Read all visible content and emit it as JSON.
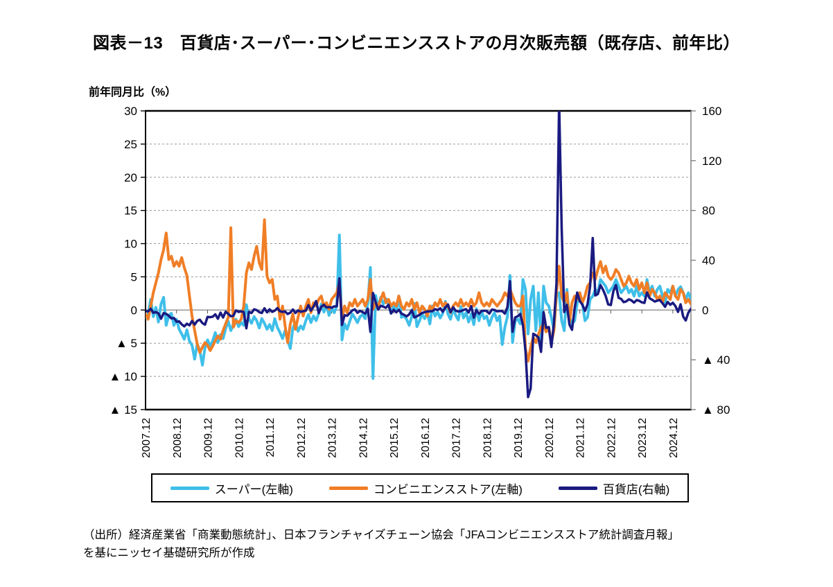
{
  "header": {
    "title": "図表－13　百貨店･スーパー･コンビニエンスストアの月次販売額（既存店、前年比）"
  },
  "chart_data": {
    "type": "line",
    "title": "百貨店･スーパー･コンビニエンスストアの月次販売額（既存店、前年比）",
    "ylabel_left": "前年同月比（%）",
    "xlabel": "",
    "grid": true,
    "legend_position": "bottom",
    "x_start": "2007.12",
    "x_end": "2025.07",
    "x_frequency": "monthly",
    "x_tick_labels": [
      "2007.12",
      "2008.12",
      "2009.12",
      "2010.12",
      "2011.12",
      "2012.12",
      "2013.12",
      "2014.12",
      "2015.12",
      "2016.12",
      "2017.12",
      "2018.12",
      "2019.12",
      "2020.12",
      "2021.12",
      "2022.12",
      "2023.12",
      "2024.12"
    ],
    "left_axis": {
      "min": -15,
      "max": 30,
      "tick_values": [
        30,
        25,
        20,
        15,
        10,
        5,
        0,
        -5,
        -10,
        -15
      ],
      "tick_labels": [
        "30",
        "25",
        "20",
        "15",
        "10",
        "5",
        "0",
        "▲ 5",
        "▲ 10",
        "▲ 15"
      ]
    },
    "right_axis": {
      "min": -80,
      "max": 160,
      "tick_values": [
        160,
        120,
        80,
        40,
        0,
        -40,
        -80
      ],
      "tick_labels": [
        "160",
        "120",
        "80",
        "40",
        "0",
        "▲ 40",
        "▲ 80"
      ]
    },
    "series": [
      {
        "name": "スーパー(左軸)",
        "axis": "left",
        "color": "#3FBFE9",
        "width": 4,
        "values": [
          -1.2,
          -0.6,
          1.6,
          -1.0,
          0.4,
          -1.8,
          0.9,
          1.9,
          -2.3,
          -0.8,
          -0.5,
          -2.3,
          -1.4,
          -2.9,
          -3.6,
          -4.4,
          -3.0,
          -4.7,
          -5.3,
          -7.4,
          -5.1,
          -6.1,
          -8.3,
          -5.7,
          -4.5,
          -5.5,
          -4.6,
          -3.4,
          -4.9,
          -3.7,
          -4.3,
          -2.8,
          -1.7,
          -3.1,
          -2.1,
          -1.4,
          -2.5,
          -1.9,
          -2.3,
          0.8,
          -1.3,
          -2.0,
          -1.0,
          -1.6,
          -2.7,
          -1.3,
          -2.0,
          -2.9,
          -2.2,
          -3.1,
          -1.3,
          -2.6,
          -3.4,
          -4.3,
          -3.1,
          -4.6,
          -5.8,
          -2.7,
          -1.9,
          -3.2,
          -2.4,
          -2.9,
          -1.6,
          -0.7,
          -1.9,
          -0.9,
          -1.6,
          -0.5,
          0.9,
          -0.3,
          0.8,
          -0.8,
          0.3,
          -0.4,
          0.6,
          11.3,
          -4.5,
          -2.1,
          -2.9,
          -1.7,
          -0.6,
          -1.2,
          -1.9,
          -1.0,
          -0.7,
          -1.3,
          1.1,
          6.4,
          -10.3,
          2.2,
          0.4,
          1.9,
          0.9,
          1.7,
          0.9,
          -0.5,
          0.7,
          -0.2,
          2.1,
          -1.1,
          -0.9,
          -1.4,
          -2.3,
          -1.0,
          1.0,
          -2.5,
          -1.6,
          -0.6,
          -1.3,
          -0.4,
          -2.1,
          0.6,
          -0.9,
          -0.3,
          -1.2,
          -0.5,
          1.3,
          -0.6,
          -1.4,
          0.2,
          -0.8,
          -1.5,
          0.5,
          -1.2,
          -0.4,
          -1.8,
          -0.6,
          -2.2,
          0.2,
          -1.6,
          -0.2,
          -1.3,
          -0.9,
          -2.3,
          -1.1,
          -0.4,
          -1.6,
          -0.9,
          -5.2,
          -2.6,
          -1.0,
          5.2,
          -4.9,
          -1.6,
          -1.4,
          -2.1,
          4.6,
          3.1,
          -3.6,
          1.6,
          3.6,
          -3.1,
          2.6,
          -4.6,
          3.6,
          1.1,
          0.6,
          -1.1,
          -3.1,
          2.1,
          2.6,
          -1.6,
          -3.1,
          3.1,
          -1.1,
          -2.1,
          -1.6,
          1.1,
          1.6,
          1.1,
          -1.6,
          -1.1,
          1.6,
          2.1,
          3.1,
          2.6,
          4.6,
          4.1,
          3.6,
          2.6,
          3.1,
          3.6,
          4.6,
          3.6,
          2.6,
          3.1,
          3.6,
          2.6,
          3.1,
          2.1,
          3.6,
          2.1,
          2.6,
          2.1,
          4.6,
          2.6,
          3.6,
          2.1,
          3.1,
          3.6,
          2.1,
          1.1,
          3.1,
          2.6,
          3.6,
          2.1,
          3.1,
          3.5,
          2.6,
          1.6,
          2.6,
          1.6
        ]
      },
      {
        "name": "コンビニエンスストア(左軸)",
        "axis": "left",
        "color": "#F07E26",
        "width": 4,
        "values": [
          -0.6,
          -1.4,
          0.6,
          2.6,
          4.1,
          5.6,
          7.6,
          9.1,
          11.6,
          7.6,
          8.1,
          6.6,
          7.3,
          6.6,
          7.9,
          6.4,
          5.2,
          2.1,
          -0.9,
          -3.1,
          -5.1,
          -6.4,
          -5.6,
          -4.9,
          -5.3,
          -6.1,
          -5.4,
          -4.6,
          -3.9,
          -4.4,
          -3.1,
          -2.1,
          -1.1,
          12.4,
          -2.6,
          -1.6,
          -1.9,
          -1.4,
          0.6,
          5.6,
          7.1,
          6.1,
          8.1,
          9.6,
          7.1,
          6.1,
          13.6,
          5.1,
          4.1,
          4.6,
          1.6,
          2.1,
          -1.4,
          0.6,
          -2.4,
          -4.9,
          -2.1,
          -0.6,
          -2.9,
          -1.1,
          0.6,
          -0.9,
          0.6,
          1.6,
          -0.4,
          1.1,
          0.6,
          1.6,
          2.1,
          0.6,
          1.1,
          0.1,
          1.6,
          2.1,
          2.6,
          4.1,
          -1.4,
          0.6,
          -0.4,
          1.1,
          0.6,
          1.6,
          0.6,
          1.1,
          1.6,
          0.6,
          1.6,
          4.6,
          0.1,
          1.1,
          0.6,
          1.6,
          2.6,
          1.1,
          1.6,
          0.6,
          1.1,
          0.6,
          2.1,
          0.6,
          0.1,
          1.1,
          0.6,
          1.6,
          0.1,
          1.1,
          -0.4,
          0.6,
          0.1,
          -0.9,
          0.6,
          0.1,
          1.1,
          0.6,
          1.6,
          0.6,
          1.1,
          0.6,
          -0.4,
          0.6,
          1.1,
          0.6,
          1.6,
          0.6,
          1.1,
          0.6,
          1.6,
          0.6,
          1.1,
          2.6,
          1.1,
          0.6,
          1.1,
          0.6,
          1.6,
          1.1,
          0.6,
          1.1,
          1.6,
          2.6,
          2.1,
          3.1,
          2.1,
          1.1,
          0.6,
          0.6,
          2.1,
          -5.9,
          -7.7,
          -5.6,
          -4.1,
          -4.9,
          -3.7,
          -2.6,
          -2.1,
          -3.3,
          -2.6,
          -4.9,
          -3.1,
          2.6,
          6.6,
          2.1,
          1.1,
          2.6,
          -1.9,
          1.1,
          2.1,
          1.6,
          2.6,
          1.1,
          2.1,
          3.6,
          4.1,
          5.6,
          4.6,
          6.1,
          7.3,
          5.6,
          6.6,
          5.1,
          4.6,
          5.1,
          6.1,
          5.6,
          4.6,
          3.6,
          4.1,
          5.1,
          4.1,
          3.6,
          4.6,
          3.1,
          4.1,
          2.6,
          4.1,
          2.1,
          3.1,
          2.6,
          1.6,
          2.1,
          1.1,
          2.6,
          2.1,
          1.6,
          3.6,
          2.1,
          1.6,
          3.1,
          2.6,
          1.1,
          1.6,
          0.9
        ]
      },
      {
        "name": "百貨店(右軸)",
        "axis": "right",
        "color": "#1A1A80",
        "width": 3.5,
        "values": [
          -0.8,
          -1.1,
          1.0,
          -2.2,
          -1.6,
          -2.7,
          -7.0,
          -2.5,
          -3.1,
          -4.7,
          -6.8,
          -6.4,
          -9.4,
          -9.1,
          -11.5,
          -13.1,
          -11.0,
          -12.3,
          -8.8,
          -11.7,
          -8.8,
          -7.8,
          -10.5,
          -11.8,
          -5.5,
          -5.7,
          -5.4,
          -3.5,
          -7.0,
          -2.1,
          -6.0,
          -1.4,
          -3.1,
          -5.0,
          -4.6,
          -0.3,
          -1.5,
          -1.1,
          -1.6,
          -14.7,
          -1.5,
          -2.4,
          0.6,
          -0.1,
          -1.7,
          -2.4,
          1.4,
          -1.9,
          0.6,
          -1.5,
          -0.5,
          1.5,
          -1.0,
          -1.5,
          -1.2,
          -3.2,
          -2.1,
          0.4,
          -2.4,
          -0.3,
          -1.3,
          -1.0,
          -0.5,
          3.9,
          -0.5,
          2.6,
          7.2,
          -2.5,
          2.7,
          4.2,
          2.1,
          2.4,
          1.8,
          2.9,
          3.0,
          25.4,
          -12.0,
          -4.2,
          -4.6,
          -2.5,
          -0.3,
          0.5,
          -2.2,
          -0.7,
          -1.7,
          -2.8,
          1.1,
          -17.5,
          13.7,
          6.3,
          0.4,
          3.4,
          2.7,
          1.8,
          4.2,
          -2.7,
          0.2,
          -1.9,
          0.2,
          -2.9,
          -3.8,
          -5.1,
          -3.5,
          -0.1,
          -6.0,
          -5.0,
          -3.9,
          -2.4,
          -1.7,
          -1.2,
          -1.0,
          -0.9,
          0.7,
          0.0,
          1.4,
          -1.4,
          2.0,
          4.4,
          -1.8,
          2.2,
          -0.6,
          -1.2,
          -0.9,
          0.1,
          0.7,
          -2.0,
          3.1,
          -6.1,
          -0.2,
          -3.0,
          -0.8,
          -0.6,
          -0.7,
          -2.9,
          0.3,
          0.1,
          -1.1,
          -0.8,
          -0.9,
          -2.9,
          2.3,
          23.1,
          -17.5,
          -6.0,
          -5.0,
          -3.1,
          -12.2,
          -33.4,
          -70.0,
          -63.0,
          -19.1,
          -20.3,
          -22.0,
          -33.6,
          -1.7,
          -14.3,
          -13.7,
          -29.7,
          -10.7,
          21.8,
          167.0,
          65.2,
          -1.6,
          4.2,
          -11.7,
          -15.9,
          1.4,
          14.0,
          7.2,
          4.3,
          -0.7,
          4.6,
          19.0,
          57.8,
          11.7,
          12.9,
          20.0,
          16.2,
          11.4,
          4.5,
          4.0,
          15.1,
          20.0,
          9.8,
          8.9,
          6.3,
          7.0,
          8.6,
          7.7,
          6.0,
          8.0,
          7.4,
          6.2,
          5.7,
          14.1,
          9.5,
          8.2,
          6.8,
          7.6,
          8.0,
          5.4,
          2.6,
          6.5,
          4.2,
          5.8,
          3.2,
          -1.5,
          4.6,
          -5.2,
          -8.4,
          -2.1,
          1.0
        ]
      }
    ]
  },
  "legend": {
    "items": [
      {
        "label": "スーパー(左軸)",
        "color": "#3FBFE9"
      },
      {
        "label": "コンビニエンスストア(左軸)",
        "color": "#F07E26"
      },
      {
        "label": "百貨店(右軸)",
        "color": "#1A1A80"
      }
    ]
  },
  "footer": {
    "line1": "（出所）経済産業省「商業動態統計」、日本フランチャイズチェーン協会「JFAコンビニエンスストア統計調査月報」",
    "line2": "を基にニッセイ基礎研究所が作成"
  },
  "style_colors": {
    "frame": "#000000",
    "right_axis_line": "#808080",
    "gridline": "#999999",
    "zero_line": "#777777"
  }
}
